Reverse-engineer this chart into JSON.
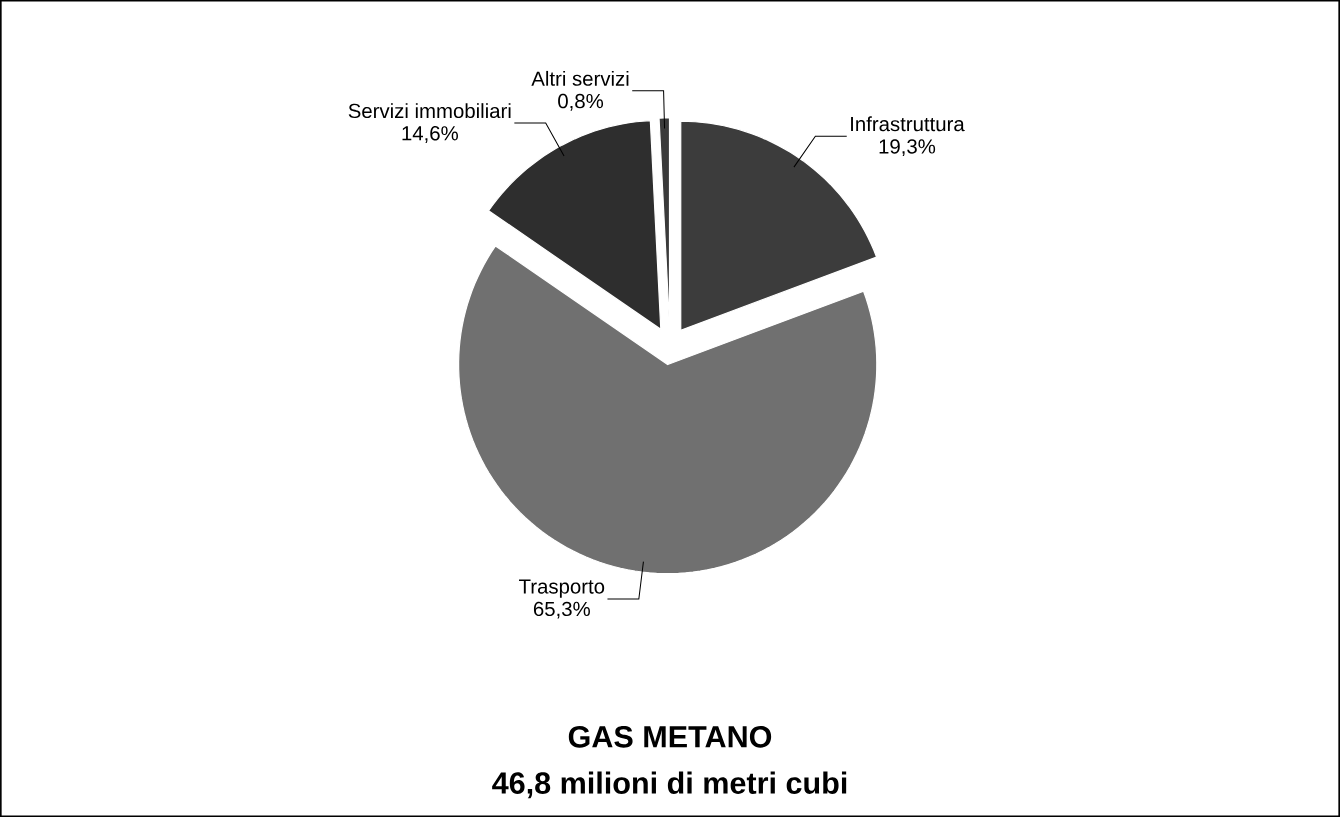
{
  "chart_data": {
    "type": "pie",
    "title": "GAS METANO",
    "subtitle": "46,8 milioni di metri cubi",
    "categories": [
      "Infrastruttura",
      "Trasporto",
      "Servizi immobiliari",
      "Altri servizi"
    ],
    "values": [
      19.3,
      65.3,
      14.6,
      0.8
    ],
    "value_labels": [
      "19,3%",
      "65,3%",
      "14,6%",
      "0,8%"
    ],
    "colors": [
      "#3c3c3c",
      "#707070",
      "#2e2e2e",
      "#3a3a3a"
    ]
  }
}
